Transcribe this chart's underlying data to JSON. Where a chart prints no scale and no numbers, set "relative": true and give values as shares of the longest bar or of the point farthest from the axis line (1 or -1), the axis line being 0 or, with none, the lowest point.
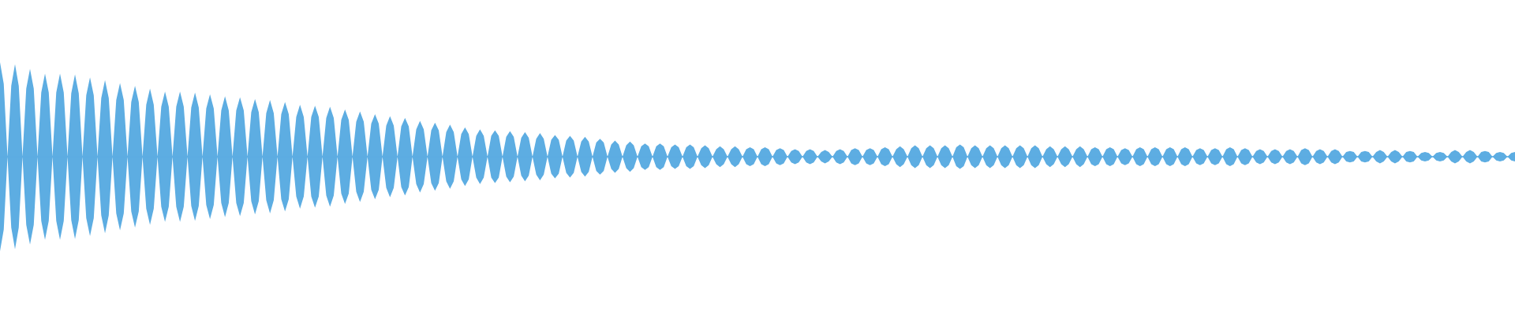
{
  "chart_data": {
    "type": "area",
    "relative": true,
    "ref_lines": [
      {
        "axis": "y",
        "value": 0,
        "color": "#5dade2"
      }
    ],
    "categories": [
      null,
      null,
      null,
      null,
      null,
      null,
      null,
      null,
      null,
      null,
      null,
      null,
      null,
      null,
      null,
      null,
      null,
      null,
      null,
      null,
      null,
      null,
      null,
      null,
      null,
      null,
      null,
      null,
      null,
      null,
      null,
      null,
      null,
      null,
      null,
      null,
      null,
      null,
      null,
      null,
      null,
      null,
      null,
      null,
      null,
      null,
      null,
      null,
      null,
      null,
      null,
      null,
      null,
      null,
      null,
      null,
      null,
      null,
      null,
      null,
      null,
      null,
      null,
      null,
      null,
      null,
      null,
      null,
      null,
      null,
      null,
      null,
      null,
      null,
      null,
      null,
      null,
      null,
      null,
      null,
      null,
      null,
      null,
      null,
      null,
      null,
      null,
      null,
      null,
      null,
      null,
      null,
      null,
      null,
      null,
      null,
      null,
      null,
      null,
      null,
      null,
      null,
      null,
      null,
      null,
      null,
      null,
      null,
      null,
      null,
      null,
      null,
      null,
      null,
      null,
      null,
      null,
      null,
      null,
      null,
      null,
      null,
      null,
      null,
      null,
      null,
      null,
      null,
      null,
      null,
      null,
      null,
      null,
      null,
      null,
      null,
      null,
      null,
      null,
      null,
      null,
      null,
      null,
      null,
      null,
      null,
      null,
      null,
      null,
      null,
      null,
      null,
      null,
      null,
      null,
      null,
      null,
      null,
      null,
      null,
      null,
      null,
      null,
      null,
      null,
      null,
      null,
      null,
      null,
      null,
      null,
      null,
      null,
      null,
      null,
      null,
      null,
      null,
      null,
      null,
      null,
      null,
      null,
      null,
      null,
      null,
      null,
      null,
      null,
      null,
      null,
      null,
      null,
      null,
      null,
      null,
      null,
      null,
      null,
      null,
      null,
      null,
      null,
      null,
      null,
      null,
      null,
      null,
      null,
      null,
      null,
      null,
      null,
      null,
      null,
      null,
      null,
      null,
      null,
      null,
      null,
      null,
      null,
      null,
      null,
      null,
      null,
      null,
      null,
      null,
      null,
      null,
      null,
      null,
      null,
      null,
      null,
      null,
      null,
      null,
      null,
      null,
      null,
      null,
      null,
      null,
      null,
      null,
      null,
      null,
      null,
      null,
      null,
      null,
      null,
      null,
      null,
      null,
      null,
      null,
      null,
      null,
      null,
      null,
      null,
      null,
      null,
      null,
      null,
      null,
      null,
      null,
      null,
      null,
      null,
      null,
      null,
      null,
      null,
      null,
      null,
      null,
      null,
      null,
      null,
      null,
      null,
      null,
      null,
      null,
      null,
      null,
      null,
      null,
      null,
      null,
      null,
      null,
      null,
      null,
      null,
      null,
      null,
      null,
      null,
      null,
      null,
      null,
      null,
      null,
      null,
      null,
      null,
      null,
      null,
      null,
      null,
      null,
      null,
      null,
      null,
      null,
      null,
      null,
      null,
      null,
      null,
      null,
      null,
      null,
      null,
      null,
      null,
      null,
      null,
      null,
      null,
      null,
      null,
      null,
      null,
      null,
      null,
      null,
      null,
      null,
      null,
      null,
      null,
      null,
      null,
      null,
      null,
      null,
      null,
      null,
      null,
      null,
      null,
      null,
      null,
      null,
      null,
      null,
      null,
      null,
      null,
      null,
      null,
      null,
      null,
      null,
      null,
      null,
      null,
      null,
      null,
      null,
      null,
      null,
      null,
      null,
      null,
      null,
      null,
      null,
      null,
      null,
      null,
      null,
      null,
      null,
      null,
      null,
      null,
      null,
      null,
      null,
      null,
      null,
      null,
      null,
      null,
      null,
      null
    ],
    "series": [
      {
        "color": "#5dade2",
        "values": [
          1,
          0.77,
          0,
          0.75,
          0.98,
          0.75,
          0,
          0.72,
          0.93,
          0.72,
          0,
          0.68,
          0.88,
          0.68,
          0,
          0.68,
          0.88,
          0.68,
          0,
          0.67,
          0.87,
          0.67,
          0,
          0.65,
          0.84,
          0.65,
          0,
          0.62,
          0.81,
          0.62,
          0,
          0.6,
          0.78,
          0.6,
          0,
          0.58,
          0.75,
          0.58,
          0,
          0.55,
          0.72,
          0.55,
          0,
          0.53,
          0.69,
          0.53,
          0,
          0.53,
          0.69,
          0.53,
          0,
          0.52,
          0.68,
          0.52,
          0,
          0.51,
          0.66,
          0.51,
          0,
          0.49,
          0.64,
          0.49,
          0,
          0.49,
          0.63,
          0.49,
          0,
          0.47,
          0.61,
          0.47,
          0,
          0.46,
          0.6,
          0.46,
          0,
          0.45,
          0.58,
          0.45,
          0,
          0.42,
          0.55,
          0.42,
          0,
          0.42,
          0.54,
          0.42,
          0,
          0.41,
          0.53,
          0.41,
          0,
          0.39,
          0.5,
          0.39,
          0,
          0.37,
          0.48,
          0.37,
          0,
          0.35,
          0.45,
          0.35,
          0,
          0.33,
          0.43,
          0.33,
          0,
          0.32,
          0.41,
          0.32,
          0,
          0.29,
          0.38,
          0.29,
          0,
          0.28,
          0.36,
          0.28,
          0,
          0.26,
          0.34,
          0.26,
          0,
          0.24,
          0.31,
          0.24,
          0,
          0.22,
          0.29,
          0.22,
          0,
          0.22,
          0.28,
          0.22,
          0,
          0.21,
          0.27,
          0.21,
          0,
          0.2,
          0.26,
          0.2,
          0,
          0.19,
          0.25,
          0.19,
          0,
          0.18,
          0.23,
          0.18,
          0,
          0.17,
          0.22,
          0.17,
          0,
          0.16,
          0.21,
          0.16,
          0,
          0.15,
          0.19,
          0.15,
          0,
          0.13,
          0.17,
          0.13,
          0,
          0.12,
          0.16,
          0.12,
          0,
          0.11,
          0.14,
          0.11,
          0,
          0.11,
          0.14,
          0.11,
          0,
          0.1,
          0.13,
          0.1,
          0,
          0.1,
          0.13,
          0.1,
          0,
          0.09,
          0.12,
          0.09,
          0,
          0.08,
          0.11,
          0.08,
          0,
          0.08,
          0.11,
          0.08,
          0,
          0.08,
          0.1,
          0.08,
          0,
          0.08,
          0.1,
          0.08,
          0,
          0.07,
          0.09,
          0.07,
          0,
          0.06,
          0.08,
          0.06,
          0,
          0.06,
          0.08,
          0.06,
          0,
          0.05,
          0.07,
          0.05,
          0,
          0.06,
          0.08,
          0.06,
          0,
          0.07,
          0.09,
          0.07,
          0,
          0.07,
          0.09,
          0.07,
          0,
          0.08,
          0.1,
          0.08,
          0,
          0.08,
          0.11,
          0.08,
          0,
          0.09,
          0.12,
          0.09,
          0,
          0.09,
          0.12,
          0.09,
          0,
          0.09,
          0.12,
          0.09,
          0,
          0.1,
          0.13,
          0.1,
          0,
          0.09,
          0.12,
          0.09,
          0,
          0.09,
          0.12,
          0.09,
          0,
          0.09,
          0.12,
          0.09,
          0,
          0.09,
          0.12,
          0.09,
          0,
          0.09,
          0.12,
          0.09,
          0,
          0.08,
          0.11,
          0.08,
          0,
          0.08,
          0.11,
          0.08,
          0,
          0.08,
          0.11,
          0.08,
          0,
          0.08,
          0.1,
          0.08,
          0,
          0.08,
          0.1,
          0.08,
          0,
          0.07,
          0.09,
          0.07,
          0,
          0.08,
          0.1,
          0.08,
          0,
          0.08,
          0.1,
          0.08,
          0,
          0.08,
          0.1,
          0.08,
          0,
          0.08,
          0.1,
          0.08,
          0,
          0.07,
          0.09,
          0.07,
          0,
          0.07,
          0.09,
          0.07,
          0,
          0.08,
          0.1,
          0.08,
          0,
          0.07,
          0.09,
          0.07,
          0,
          0.06,
          0.08,
          0.06,
          0,
          0.06,
          0.08,
          0.06,
          0,
          0.06,
          0.08,
          0.06,
          0,
          0.07,
          0.09,
          0.07,
          0,
          0.06,
          0.08,
          0.06,
          0,
          0.06,
          0.08,
          0.06,
          0,
          0.05,
          0.06,
          0.05,
          0,
          0.05,
          0.06,
          0.05,
          0,
          0.05,
          0.07,
          0.05,
          0,
          0.05,
          0.07,
          0.05,
          0,
          0.05,
          0.06,
          0.05,
          0,
          0.04,
          0.05,
          0.04,
          0,
          0.04,
          0.05,
          0.04,
          0,
          0.05,
          0.07,
          0.05,
          0,
          0.05,
          0.07,
          0.05,
          0,
          0.05,
          0.06,
          0.05,
          0,
          0.04,
          0.05,
          0.04,
          0,
          0.04,
          0.05
        ]
      },
      {
        "color": "#5dade2",
        "values": [
          -1,
          -0.77,
          0,
          -0.75,
          -0.98,
          -0.75,
          0,
          -0.72,
          -0.93,
          -0.72,
          0,
          -0.68,
          -0.88,
          -0.68,
          0,
          -0.68,
          -0.88,
          -0.68,
          0,
          -0.67,
          -0.87,
          -0.67,
          0,
          -0.65,
          -0.84,
          -0.65,
          0,
          -0.62,
          -0.81,
          -0.62,
          0,
          -0.6,
          -0.78,
          -0.6,
          0,
          -0.58,
          -0.75,
          -0.58,
          0,
          -0.55,
          -0.72,
          -0.55,
          0,
          -0.53,
          -0.69,
          -0.53,
          0,
          -0.53,
          -0.69,
          -0.53,
          0,
          -0.52,
          -0.68,
          -0.52,
          0,
          -0.51,
          -0.66,
          -0.51,
          0,
          -0.49,
          -0.64,
          -0.49,
          0,
          -0.49,
          -0.63,
          -0.49,
          0,
          -0.47,
          -0.61,
          -0.47,
          0,
          -0.46,
          -0.6,
          -0.46,
          0,
          -0.45,
          -0.58,
          -0.45,
          0,
          -0.42,
          -0.55,
          -0.42,
          0,
          -0.42,
          -0.54,
          -0.42,
          0,
          -0.41,
          -0.53,
          -0.41,
          0,
          -0.39,
          -0.5,
          -0.39,
          0,
          -0.37,
          -0.48,
          -0.37,
          0,
          -0.35,
          -0.45,
          -0.35,
          0,
          -0.33,
          -0.43,
          -0.33,
          0,
          -0.32,
          -0.41,
          -0.32,
          0,
          -0.29,
          -0.38,
          -0.29,
          0,
          -0.28,
          -0.36,
          -0.28,
          0,
          -0.26,
          -0.34,
          -0.26,
          0,
          -0.24,
          -0.31,
          -0.24,
          0,
          -0.22,
          -0.29,
          -0.22,
          0,
          -0.22,
          -0.28,
          -0.22,
          0,
          -0.21,
          -0.27,
          -0.21,
          0,
          -0.2,
          -0.26,
          -0.2,
          0,
          -0.19,
          -0.25,
          -0.19,
          0,
          -0.18,
          -0.23,
          -0.18,
          0,
          -0.17,
          -0.22,
          -0.17,
          0,
          -0.16,
          -0.21,
          -0.16,
          0,
          -0.15,
          -0.19,
          -0.15,
          0,
          -0.13,
          -0.17,
          -0.13,
          0,
          -0.12,
          -0.16,
          -0.12,
          0,
          -0.11,
          -0.14,
          -0.11,
          0,
          -0.11,
          -0.14,
          -0.11,
          0,
          -0.1,
          -0.13,
          -0.1,
          0,
          -0.1,
          -0.13,
          -0.1,
          0,
          -0.09,
          -0.12,
          -0.09,
          0,
          -0.08,
          -0.11,
          -0.08,
          0,
          -0.08,
          -0.11,
          -0.08,
          0,
          -0.08,
          -0.1,
          -0.08,
          0,
          -0.08,
          -0.1,
          -0.08,
          0,
          -0.07,
          -0.09,
          -0.07,
          0,
          -0.06,
          -0.08,
          -0.06,
          0,
          -0.06,
          -0.08,
          -0.06,
          0,
          -0.05,
          -0.07,
          -0.05,
          0,
          -0.06,
          -0.08,
          -0.06,
          0,
          -0.07,
          -0.09,
          -0.07,
          0,
          -0.07,
          -0.09,
          -0.07,
          0,
          -0.08,
          -0.1,
          -0.08,
          0,
          -0.08,
          -0.11,
          -0.08,
          0,
          -0.09,
          -0.12,
          -0.09,
          0,
          -0.09,
          -0.12,
          -0.09,
          0,
          -0.09,
          -0.12,
          -0.09,
          0,
          -0.1,
          -0.13,
          -0.1,
          0,
          -0.09,
          -0.12,
          -0.09,
          0,
          -0.09,
          -0.12,
          -0.09,
          0,
          -0.09,
          -0.12,
          -0.09,
          0,
          -0.09,
          -0.12,
          -0.09,
          0,
          -0.09,
          -0.12,
          -0.09,
          0,
          -0.08,
          -0.11,
          -0.08,
          0,
          -0.08,
          -0.11,
          -0.08,
          0,
          -0.08,
          -0.11,
          -0.08,
          0,
          -0.08,
          -0.1,
          -0.08,
          0,
          -0.08,
          -0.1,
          -0.08,
          0,
          -0.07,
          -0.09,
          -0.07,
          0,
          -0.08,
          -0.1,
          -0.08,
          0,
          -0.08,
          -0.1,
          -0.08,
          0,
          -0.08,
          -0.1,
          -0.08,
          0,
          -0.08,
          -0.1,
          -0.08,
          0,
          -0.07,
          -0.09,
          -0.07,
          0,
          -0.07,
          -0.09,
          -0.07,
          0,
          -0.08,
          -0.1,
          -0.08,
          0,
          -0.07,
          -0.09,
          -0.07,
          0,
          -0.06,
          -0.08,
          -0.06,
          0,
          -0.06,
          -0.08,
          -0.06,
          0,
          -0.06,
          -0.08,
          -0.06,
          0,
          -0.07,
          -0.09,
          -0.07,
          0,
          -0.06,
          -0.08,
          -0.06,
          0,
          -0.06,
          -0.08,
          -0.06,
          0,
          -0.05,
          -0.06,
          -0.05,
          0,
          -0.05,
          -0.06,
          -0.05,
          0,
          -0.05,
          -0.07,
          -0.05,
          0,
          -0.05,
          -0.07,
          -0.05,
          0,
          -0.05,
          -0.06,
          -0.05,
          0,
          -0.04,
          -0.05,
          -0.04,
          0,
          -0.04,
          -0.05,
          -0.04,
          0,
          -0.05,
          -0.07,
          -0.05,
          0,
          -0.05,
          -0.07,
          -0.05,
          0,
          -0.05,
          -0.06,
          -0.05,
          0,
          -0.04,
          -0.05,
          -0.04,
          0,
          -0.04,
          -0.05
        ]
      }
    ]
  }
}
